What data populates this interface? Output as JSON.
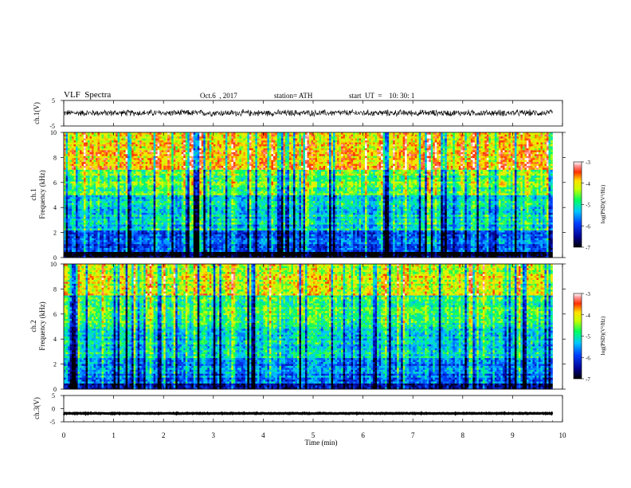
{
  "header": {
    "title": "VLF  Spectra",
    "date": "Oct.6  , 2017",
    "station": "station= ATH",
    "start": "start  UT  =    10: 30: 1"
  },
  "chart_data": [
    {
      "type": "line",
      "panel": "ch1-waveform",
      "ylabel": "ch.1(V)",
      "ylim": [
        -5,
        5
      ],
      "yticks": [
        "5",
        "-5"
      ],
      "xlim": [
        0,
        10
      ],
      "x_end": 9.8,
      "baseline": 0.1,
      "fluctuation_amplitude": 1.5,
      "color": "#000000"
    },
    {
      "type": "heatmap",
      "panel": "ch1-spectrogram",
      "ylabel": "ch.1\nFrequency  (kHz)",
      "ylim": [
        0,
        10
      ],
      "yticks": [
        "0",
        "2",
        "4",
        "6",
        "8",
        "10"
      ],
      "xlim": [
        0,
        10
      ],
      "x_end": 9.8,
      "colorbar": {
        "label": "log(PSD)(V²/Hz)",
        "range": [
          -7,
          -3
        ],
        "ticks": [
          "-3",
          "-4",
          "-5",
          "-6",
          "-7"
        ]
      },
      "description_levels": [
        {
          "freq_khz": [
            0,
            0.5
          ],
          "log_psd": -7
        },
        {
          "freq_khz": [
            0.5,
            2.2
          ],
          "log_psd": -5.9
        },
        {
          "freq_khz": [
            2.2,
            5.0
          ],
          "log_psd": -5.2
        },
        {
          "freq_khz": [
            5.0,
            7.0
          ],
          "log_psd": -4.6
        },
        {
          "freq_khz": [
            7.0,
            10.0
          ],
          "log_psd": -3.9
        }
      ]
    },
    {
      "type": "heatmap",
      "panel": "ch2-spectrogram",
      "ylabel": "ch.2\nFrequency  (kHz)",
      "ylim": [
        0,
        10
      ],
      "yticks": [
        "0",
        "2",
        "4",
        "6",
        "8",
        "10"
      ],
      "xlim": [
        0,
        10
      ],
      "x_end": 9.8,
      "colorbar": {
        "label": "log(PSD)(V²/Hz)",
        "range": [
          -7,
          -3
        ],
        "ticks": [
          "-3",
          "-4",
          "-5",
          "-6",
          "-7"
        ]
      },
      "description_levels": [
        {
          "freq_khz": [
            0,
            0.5
          ],
          "log_psd": -6.6
        },
        {
          "freq_khz": [
            0.5,
            2.5
          ],
          "log_psd": -5.7
        },
        {
          "freq_khz": [
            2.5,
            5.0
          ],
          "log_psd": -5.2
        },
        {
          "freq_khz": [
            5.0,
            7.5
          ],
          "log_psd": -4.8
        },
        {
          "freq_khz": [
            7.5,
            10.0
          ],
          "log_psd": -4.2
        }
      ]
    },
    {
      "type": "line",
      "panel": "ch3-waveform",
      "ylabel": "ch.3(V)",
      "ylim": [
        -5,
        5
      ],
      "yticks": [
        "5",
        "0",
        "-5"
      ],
      "xlim": [
        0,
        10
      ],
      "x_end": 9.8,
      "baseline": -1.8,
      "fluctuation_amplitude": 0.15,
      "color": "#000000"
    }
  ],
  "x_axis": {
    "label": "Time  (min)",
    "ticks": [
      "0",
      "1",
      "2",
      "3",
      "4",
      "5",
      "6",
      "7",
      "8",
      "9",
      "10"
    ]
  }
}
